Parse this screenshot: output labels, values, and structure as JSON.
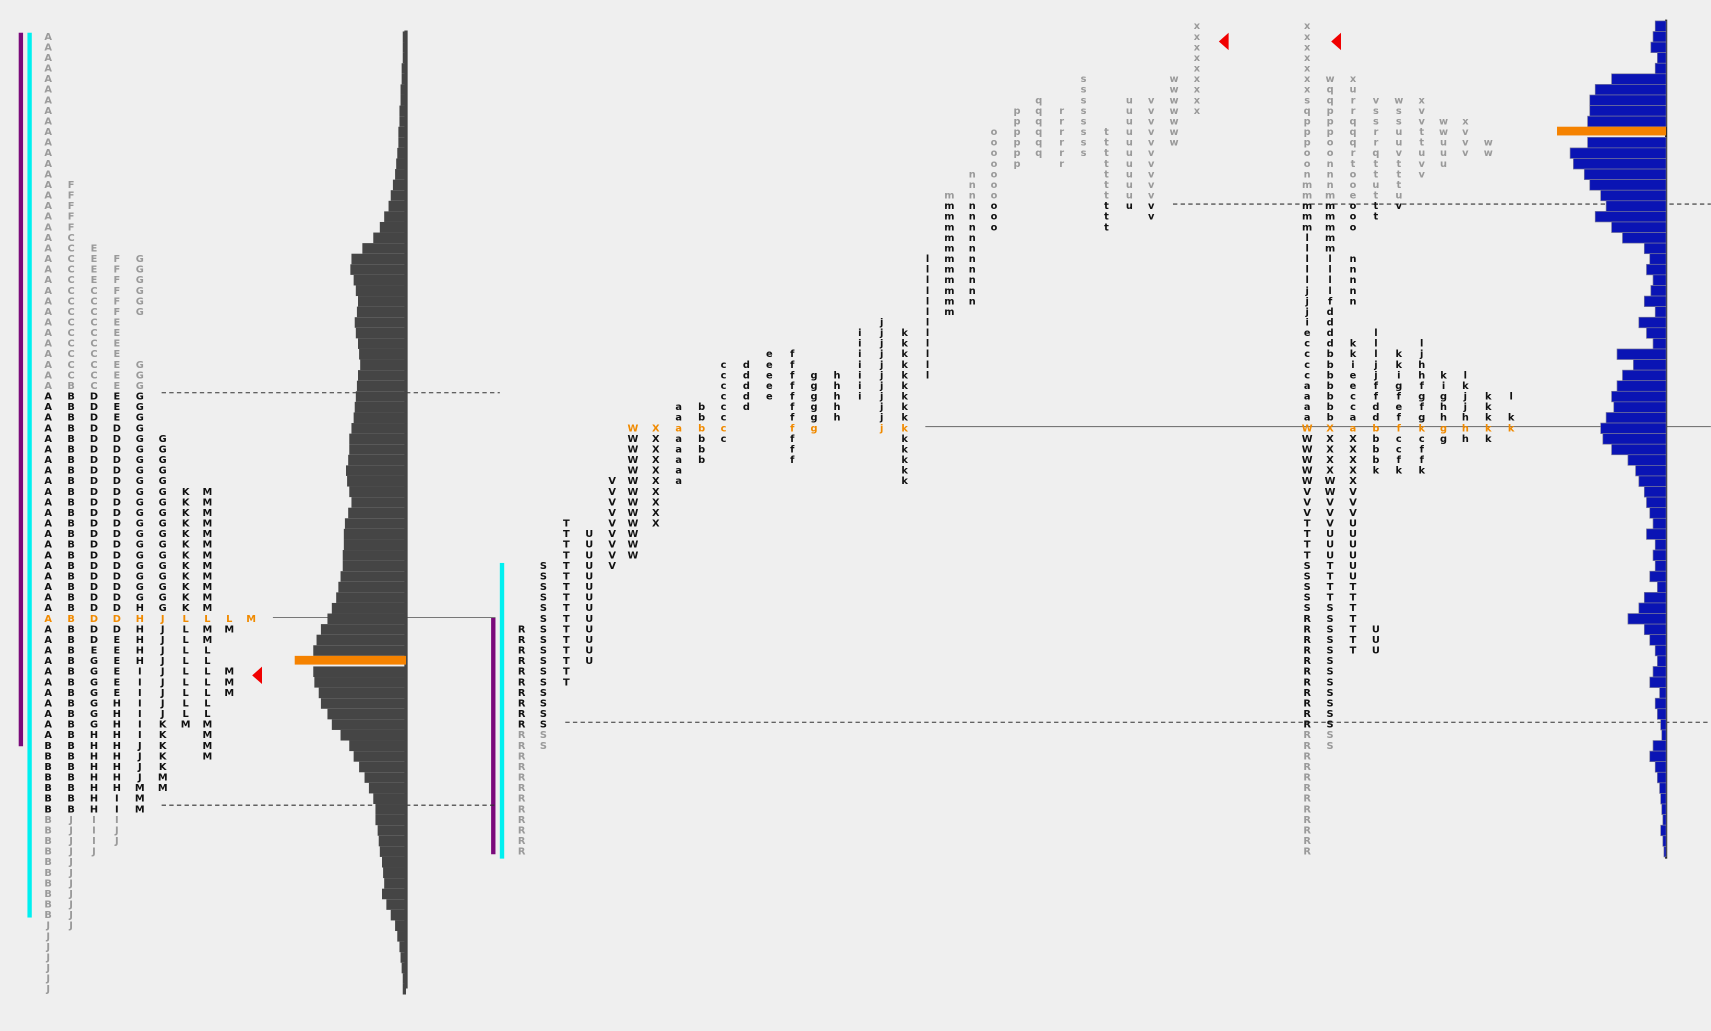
{
  "left_profile": {
    "columns": [
      "AAAAAAAAAAAAAAAAAAAAAAAAAAAAAAAAAAAAAAAAAAAAAAAAAAAAAAAAAAAAAAAAAAABBBBBBBBBBBBBBBBBJJJJJJJ",
      "FFFFFCCCCCCCCCCCCCCBBBBBBBBBBBBBBBBBBBBBBBBBBBBBBBBBBBBBBBBBJJJJJJJJJJJ",
      "EEEECCCCCCCCCCDDDDDDDDDDDDDDDDDDDDDDDDEGGGGGGGHHHHHHHHIIIJ",
      "FFFFFFEEEEEEEEEEDDDDDDDDDDDDDDDDDDDDEEEEEEHHHHHHHHHIIIJJ",
      "GGGGGG",
      "GGGGGGGGGGGGGGGGGGGGGGGHHHHHHIIIIIIIJJJJMMM",
      "GGGGGGGGGGGGGGGGGJJJJJJJJJJKKKKKMM",
      "KKKKKKKKKKKKLLLLLLLLLLM",
      "MMMMMMMMMMMMLMMLLLLLLLMMMM",
      "LM",
      "MMM",
      "M"
    ],
    "volume": [
      3,
      3,
      3,
      4,
      4,
      5,
      5,
      6,
      6,
      7,
      7,
      8,
      9,
      10,
      12,
      14,
      16,
      20,
      24,
      30,
      40,
      50,
      51,
      48,
      46,
      44,
      45,
      47,
      46,
      44,
      43,
      42,
      44,
      45,
      46,
      47,
      48,
      50,
      52,
      52,
      53,
      55,
      54,
      52,
      50,
      53,
      56,
      57,
      57,
      58,
      58,
      60,
      62,
      64,
      68,
      72,
      78,
      82,
      85,
      102,
      85,
      84,
      80,
      78,
      72,
      68,
      60,
      52,
      48,
      43,
      38,
      34,
      30,
      28,
      28,
      26,
      25,
      24,
      22,
      21,
      20,
      22,
      18,
      14,
      10,
      8,
      6,
      5,
      4,
      3,
      3
    ]
  },
  "middle_profile": {
    "columns": [
      "RRRRRRRRRRRRRRRRRRRRRR",
      "SSSSSSSSSSSSSSSSSS",
      "TTTTTTTTTTTTTTTT",
      "UUUUUUUUUUUUU",
      "VVVVVVVVV",
      "WWWWWWWWWWWWW",
      "XXXXXXXXXX",
      "aaaaaaaa",
      "bbbbbb",
      "cccccccc",
      "ddddd",
      "eeeee",
      "fffffffffff",
      "gggggg",
      "hhhhh",
      "iiiiiii",
      "jjjjjjjjjjj",
      "kkkkkkkkkkkkkkk",
      "llllllllllll",
      "mmmmmmmmmmmm",
      "nnnnnnnnnnnnn",
      "oooooooooo",
      "pppppp",
      "qqqqqq",
      "rrrrrr",
      "ssssssss",
      "tttttttttt",
      "uuuuuuuuuuu",
      "vvvvvvvvvvvv",
      "wwwwwww",
      "xxxxxxxxx"
    ]
  },
  "right_profile": {
    "columns": [
      "xxxxxxxsqpppoonmmmmmllllljjjieccccaaaaWWWWWWVVVTTTTSSSSSRRRRRRRRRRRRRRRRRRRRRRR",
      "wqqpppoonnnmmmmmmllllfddddbbbbbbbXXXXXWWVVVUUUTTTTSSSSSSSSSSSSSS",
      "xurrqqqrtooeooo",
      "nnnnn",
      "kkieeccaaXXXXXVVVUUUUUUTTTTTTT",
      "vssrrqttuttt",
      "llljjffddbbbbk",
      "UUU",
      "wssuuvtttuv",
      "kkigfeffccfk",
      "xvvttuvv",
      "ljhhfgfgkcffk",
      "wwuuu",
      "kighhgg",
      "xvvv",
      "lkjjhhh",
      "ww",
      "kkkkk",
      "l",
      "kk"
    ],
    "volume": [
      10,
      12,
      14,
      8,
      10,
      50,
      65,
      70,
      70,
      72,
      100,
      72,
      88,
      85,
      75,
      70,
      60,
      55,
      65,
      50,
      40,
      20,
      15,
      18,
      12,
      14,
      20,
      10,
      25,
      18,
      12,
      45,
      30,
      40,
      45,
      50,
      48,
      55,
      60,
      58,
      50,
      35,
      28,
      25,
      20,
      18,
      15,
      12,
      18,
      10,
      12,
      10,
      15,
      8,
      20,
      25,
      35,
      20,
      15,
      10,
      8,
      12,
      15,
      6,
      10,
      8,
      5,
      4,
      12,
      15,
      10,
      8,
      6,
      5,
      4,
      3,
      5,
      3,
      2
    ]
  }
}
